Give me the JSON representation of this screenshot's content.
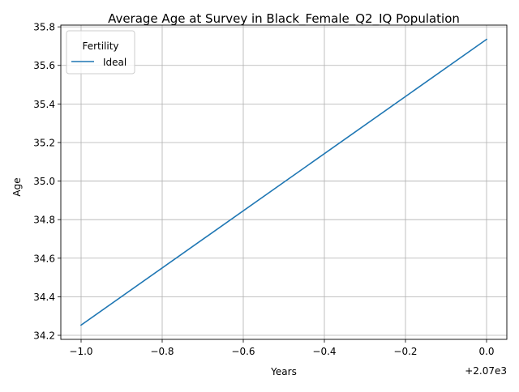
{
  "chart_data": {
    "type": "line",
    "title": "Average Age at Survey in Black_Female_Q2_IQ Population",
    "xlabel": "Years",
    "ylabel": "Age",
    "x_offset_label": "+2.07e3",
    "xlim": [
      2068.95,
      2070.05
    ],
    "ylim": [
      34.179,
      35.809
    ],
    "x_ticks": [
      2069.0,
      2069.2,
      2069.4,
      2069.6,
      2069.8,
      2070.0
    ],
    "x_tick_labels": [
      "−1.0",
      "−0.8",
      "−0.6",
      "−0.4",
      "−0.2",
      "0.0"
    ],
    "y_ticks": [
      34.2,
      34.4,
      34.6,
      34.8,
      35.0,
      35.2,
      35.4,
      35.6,
      35.8
    ],
    "y_tick_labels": [
      "34.2",
      "34.4",
      "34.6",
      "34.8",
      "35.0",
      "35.2",
      "35.4",
      "35.6",
      "35.8"
    ],
    "grid": true,
    "legend": {
      "title": "Fertility",
      "placement": "top-left"
    },
    "series": [
      {
        "name": "Ideal",
        "color": "#1f77b4",
        "x": [
          2069,
          2070
        ],
        "y": [
          34.253,
          35.735
        ]
      }
    ]
  }
}
